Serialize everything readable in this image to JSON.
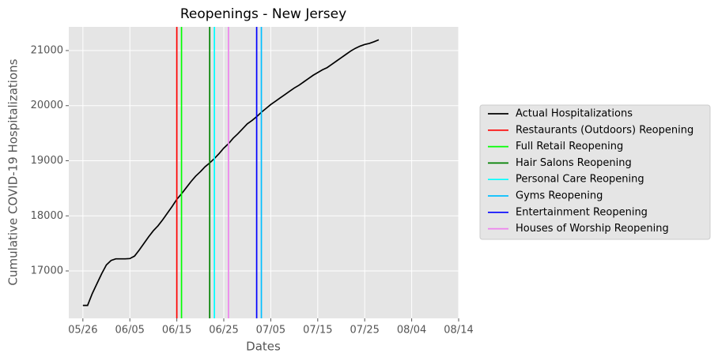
{
  "chart_data": {
    "type": "line",
    "title": "Reopenings - New Jersey",
    "x_label": "Dates",
    "y_label": "Cumulative COVID-19 Hospitalizations",
    "x": [
      "05/26",
      "05/27",
      "05/28",
      "05/29",
      "05/30",
      "05/31",
      "06/01",
      "06/02",
      "06/03",
      "06/04",
      "06/05",
      "06/06",
      "06/07",
      "06/08",
      "06/09",
      "06/10",
      "06/11",
      "06/12",
      "06/13",
      "06/14",
      "06/15",
      "06/16",
      "06/17",
      "06/18",
      "06/19",
      "06/20",
      "06/21",
      "06/22",
      "06/23",
      "06/24",
      "06/25",
      "06/26",
      "06/27",
      "06/28",
      "06/29",
      "06/30",
      "07/01",
      "07/02",
      "07/03",
      "07/04",
      "07/05",
      "07/06",
      "07/07",
      "07/08",
      "07/09",
      "07/10",
      "07/11",
      "07/12",
      "07/13",
      "07/14",
      "07/15",
      "07/16",
      "07/17",
      "07/18",
      "07/19",
      "07/20",
      "07/21",
      "07/22",
      "07/23",
      "07/24",
      "07/25",
      "07/26",
      "07/27",
      "07/28"
    ],
    "series": [
      {
        "name": "Actual Hospitalizations",
        "color": "#000000",
        "values": [
          16375,
          16375,
          16590,
          16770,
          16950,
          17110,
          17190,
          17220,
          17220,
          17220,
          17225,
          17270,
          17380,
          17500,
          17620,
          17730,
          17820,
          17930,
          18050,
          18170,
          18300,
          18400,
          18510,
          18620,
          18720,
          18800,
          18890,
          18960,
          19040,
          19130,
          19230,
          19310,
          19410,
          19490,
          19580,
          19670,
          19730,
          19800,
          19880,
          19950,
          20020,
          20080,
          20140,
          20200,
          20260,
          20320,
          20370,
          20430,
          20490,
          20550,
          20600,
          20650,
          20690,
          20750,
          20810,
          20870,
          20930,
          20990,
          21040,
          21080,
          21110,
          21130,
          21160,
          21195
        ]
      }
    ],
    "reopenings": [
      {
        "name": "Restaurants (Outdoors) Reopening",
        "color": "#ff0000",
        "x": "06/15"
      },
      {
        "name": "Full Retail Reopening",
        "color": "#00ff00",
        "x": "06/16"
      },
      {
        "name": "Hair Salons Reopening",
        "color": "#008000",
        "x": "06/22"
      },
      {
        "name": "Personal Care Reopening",
        "color": "#00ffff",
        "x": "06/23"
      },
      {
        "name": "Gyms Reopening",
        "color": "#00bfff",
        "x": "07/03"
      },
      {
        "name": "Entertainment Reopening",
        "color": "#0000ff",
        "x": "07/02"
      },
      {
        "name": "Houses of Worship Reopening",
        "color": "#ee82ee",
        "x": "06/26"
      }
    ],
    "xlim": [
      "05/23",
      "08/14"
    ],
    "xticks": [
      "05/26",
      "06/05",
      "06/15",
      "06/25",
      "07/05",
      "07/15",
      "07/25",
      "08/04",
      "08/14"
    ],
    "ylim": [
      16140,
      21430
    ],
    "yticks": [
      17000,
      18000,
      19000,
      20000,
      21000
    ],
    "grid": true,
    "legend": "right"
  }
}
